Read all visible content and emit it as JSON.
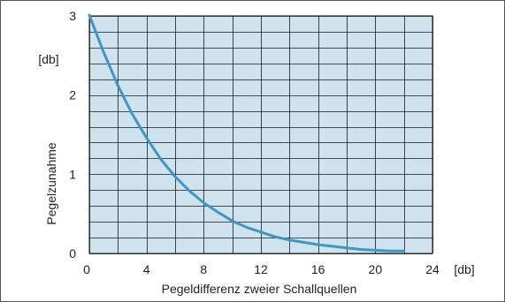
{
  "chart_data": {
    "type": "line",
    "xlabel": "Pegeldifferenz zweier Schallquellen",
    "ylabel": "Pegelzunahme",
    "x_unit": "[db]",
    "y_unit": "[db]",
    "xlim": [
      0,
      24
    ],
    "ylim": [
      0,
      3
    ],
    "x_ticks": [
      0,
      4,
      8,
      12,
      16,
      20,
      24
    ],
    "y_ticks": [
      0,
      1,
      2,
      3
    ],
    "x_minor_step": 2,
    "y_minor_step": 0.2,
    "grid": true,
    "colors": {
      "plot_bg": "#cfe3ee",
      "line": "#3b97c6",
      "grid": "#1a1a1a"
    },
    "series": [
      {
        "x": [
          0,
          1,
          2,
          3,
          4,
          5,
          6,
          7,
          8,
          9,
          10,
          11,
          12,
          13,
          14,
          15,
          16,
          17,
          18,
          19,
          20,
          21,
          22
        ],
        "values": [
          3.01,
          2.54,
          2.12,
          1.76,
          1.46,
          1.19,
          0.97,
          0.79,
          0.64,
          0.52,
          0.41,
          0.33,
          0.27,
          0.21,
          0.17,
          0.14,
          0.11,
          0.09,
          0.07,
          0.05,
          0.04,
          0.03,
          0.03
        ]
      }
    ]
  }
}
